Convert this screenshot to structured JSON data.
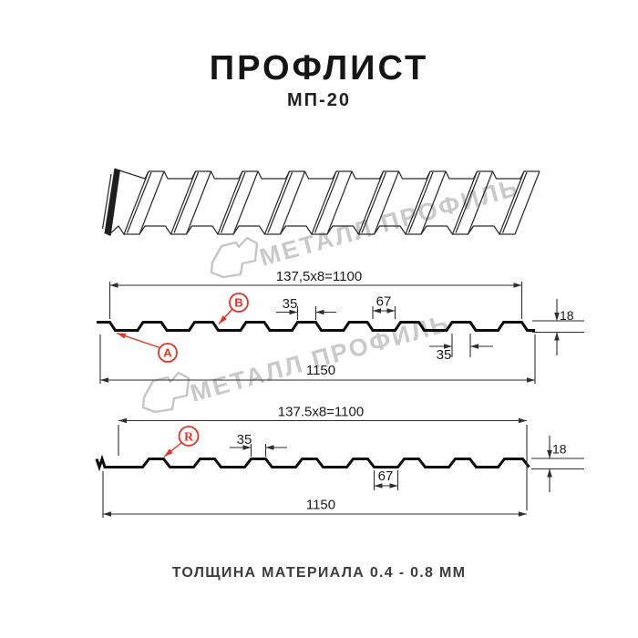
{
  "header": {
    "title": "ПРОФЛИСТ",
    "subtitle": "МП-20"
  },
  "watermark": {
    "text": "МЕТАЛЛ ПРОФИЛЬ"
  },
  "section1": {
    "pitch_dimension": "137,5x8=1100",
    "overall_width": "1150",
    "profile_height": "18",
    "rib_top_width": "35",
    "rib_bottom_width": "67",
    "rib_lower_width": "35",
    "label_a": "A",
    "label_b": "B"
  },
  "section2": {
    "pitch_dimension": "137.5x8=1100",
    "overall_width": "1150",
    "profile_height": "18",
    "rib_top_width": "35",
    "valley_width": "67",
    "label_r": "R"
  },
  "footer": {
    "caption": "ТОЛЩИНА МАТЕРИАЛА 0.4 - 0.8 ММ"
  }
}
